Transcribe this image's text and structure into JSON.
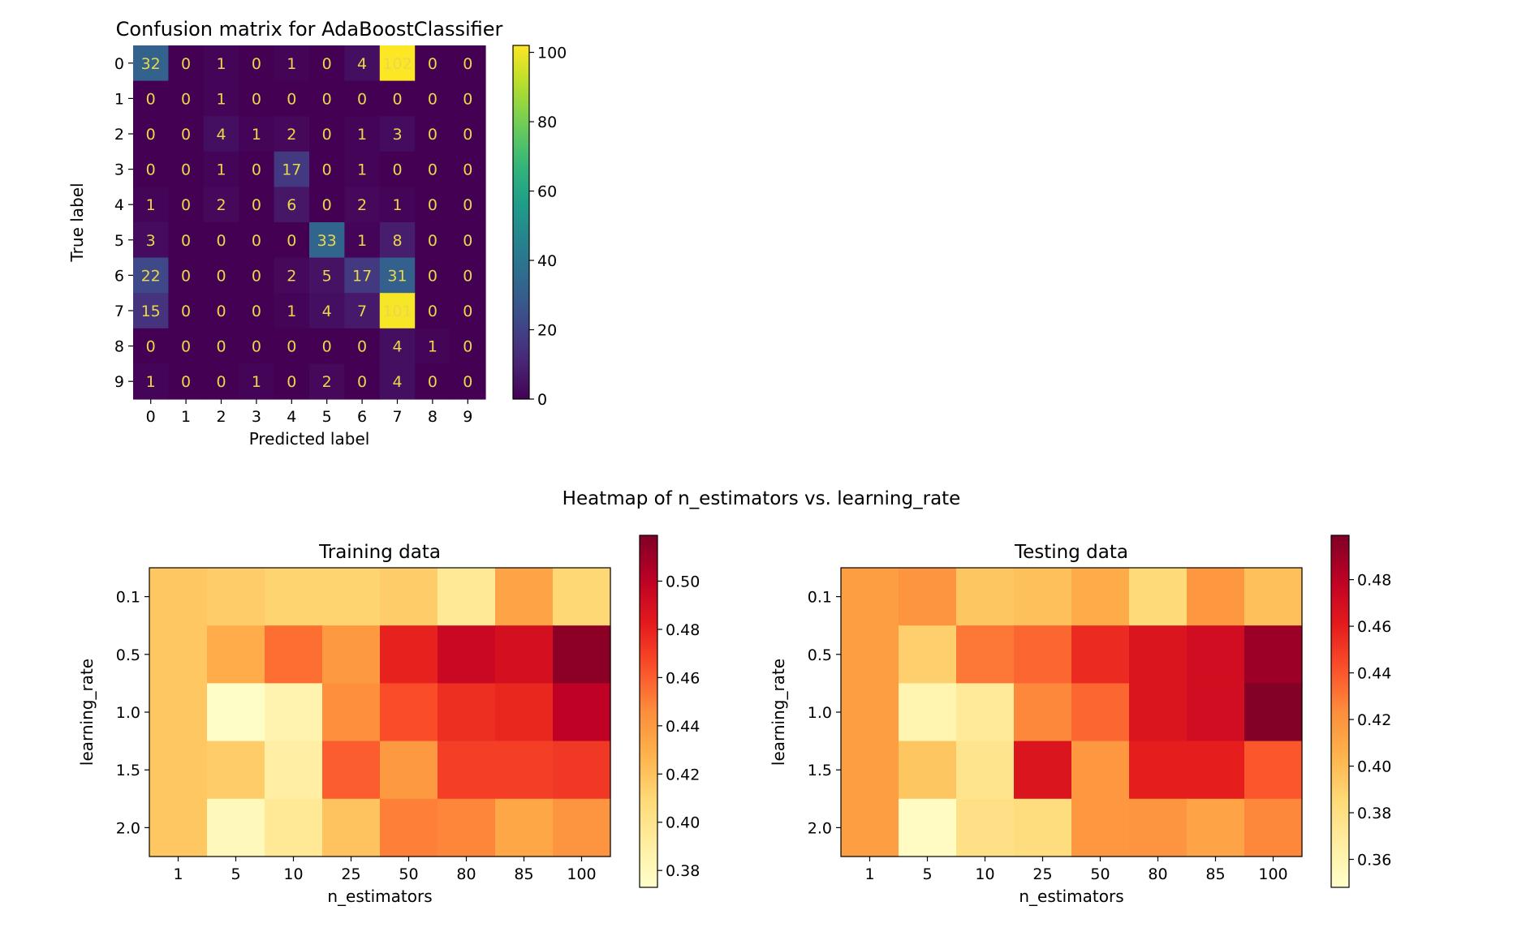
{
  "figure_title": "Heatmap of n_estimators vs. learning_rate",
  "chart_data": [
    {
      "type": "heatmap",
      "title": "Confusion matrix for AdaBoostClassifier",
      "xlabel": "Predicted label",
      "ylabel": "True label",
      "x_categories": [
        "0",
        "1",
        "2",
        "3",
        "4",
        "5",
        "6",
        "7",
        "8",
        "9"
      ],
      "y_categories": [
        "0",
        "1",
        "2",
        "3",
        "4",
        "5",
        "6",
        "7",
        "8",
        "9"
      ],
      "values": [
        [
          32,
          0,
          1,
          0,
          1,
          0,
          4,
          102,
          0,
          0
        ],
        [
          0,
          0,
          1,
          0,
          0,
          0,
          0,
          0,
          0,
          0
        ],
        [
          0,
          0,
          4,
          1,
          2,
          0,
          1,
          3,
          0,
          0
        ],
        [
          0,
          0,
          1,
          0,
          17,
          0,
          1,
          0,
          0,
          0
        ],
        [
          1,
          0,
          2,
          0,
          6,
          0,
          2,
          1,
          0,
          0
        ],
        [
          3,
          0,
          0,
          0,
          0,
          33,
          1,
          8,
          0,
          0
        ],
        [
          22,
          0,
          0,
          0,
          2,
          5,
          17,
          31,
          0,
          0
        ],
        [
          15,
          0,
          0,
          0,
          1,
          4,
          7,
          101,
          0,
          0
        ],
        [
          0,
          0,
          0,
          0,
          0,
          0,
          0,
          4,
          1,
          0
        ],
        [
          1,
          0,
          0,
          1,
          0,
          2,
          0,
          4,
          0,
          0
        ]
      ],
      "colormap": "viridis",
      "vmin": 0,
      "vmax": 102,
      "colorbar_ticks": [
        "0",
        "20",
        "40",
        "60",
        "80",
        "100"
      ],
      "annotation_color": "#e8d84a"
    },
    {
      "type": "heatmap",
      "title": "Training data",
      "xlabel": "n_estimators",
      "ylabel": "learning_rate",
      "x_categories": [
        "1",
        "5",
        "10",
        "25",
        "50",
        "80",
        "85",
        "100"
      ],
      "y_categories": [
        "0.1",
        "0.5",
        "1.0",
        "1.5",
        "2.0"
      ],
      "values": [
        [
          0.418,
          0.415,
          0.412,
          0.412,
          0.415,
          0.395,
          0.435,
          0.41
        ],
        [
          0.418,
          0.43,
          0.455,
          0.44,
          0.48,
          0.495,
          0.49,
          0.515
        ],
        [
          0.418,
          0.375,
          0.385,
          0.445,
          0.465,
          0.475,
          0.478,
          0.5
        ],
        [
          0.418,
          0.415,
          0.39,
          0.46,
          0.44,
          0.47,
          0.47,
          0.472
        ],
        [
          0.418,
          0.38,
          0.395,
          0.42,
          0.45,
          0.448,
          0.433,
          0.442
        ]
      ],
      "colormap": "YlOrRd",
      "vmin": 0.373,
      "vmax": 0.519,
      "colorbar_ticks": [
        "0.38",
        "0.40",
        "0.42",
        "0.44",
        "0.46",
        "0.48",
        "0.50"
      ]
    },
    {
      "type": "heatmap",
      "title": "Testing data",
      "xlabel": "n_estimators",
      "ylabel": "learning_rate",
      "x_categories": [
        "1",
        "5",
        "10",
        "25",
        "50",
        "80",
        "85",
        "100"
      ],
      "y_categories": [
        "0.1",
        "0.5",
        "1.0",
        "1.5",
        "2.0"
      ],
      "values": [
        [
          0.415,
          0.42,
          0.395,
          0.398,
          0.408,
          0.385,
          0.418,
          0.398
        ],
        [
          0.415,
          0.39,
          0.43,
          0.435,
          0.455,
          0.465,
          0.47,
          0.49
        ],
        [
          0.415,
          0.36,
          0.37,
          0.425,
          0.435,
          0.465,
          0.47,
          0.498
        ],
        [
          0.415,
          0.395,
          0.375,
          0.465,
          0.418,
          0.46,
          0.46,
          0.44
        ],
        [
          0.415,
          0.352,
          0.378,
          0.382,
          0.418,
          0.42,
          0.412,
          0.425
        ]
      ],
      "colormap": "YlOrRd",
      "vmin": 0.348,
      "vmax": 0.499,
      "colorbar_ticks": [
        "0.36",
        "0.38",
        "0.40",
        "0.42",
        "0.44",
        "0.46",
        "0.48"
      ]
    }
  ]
}
